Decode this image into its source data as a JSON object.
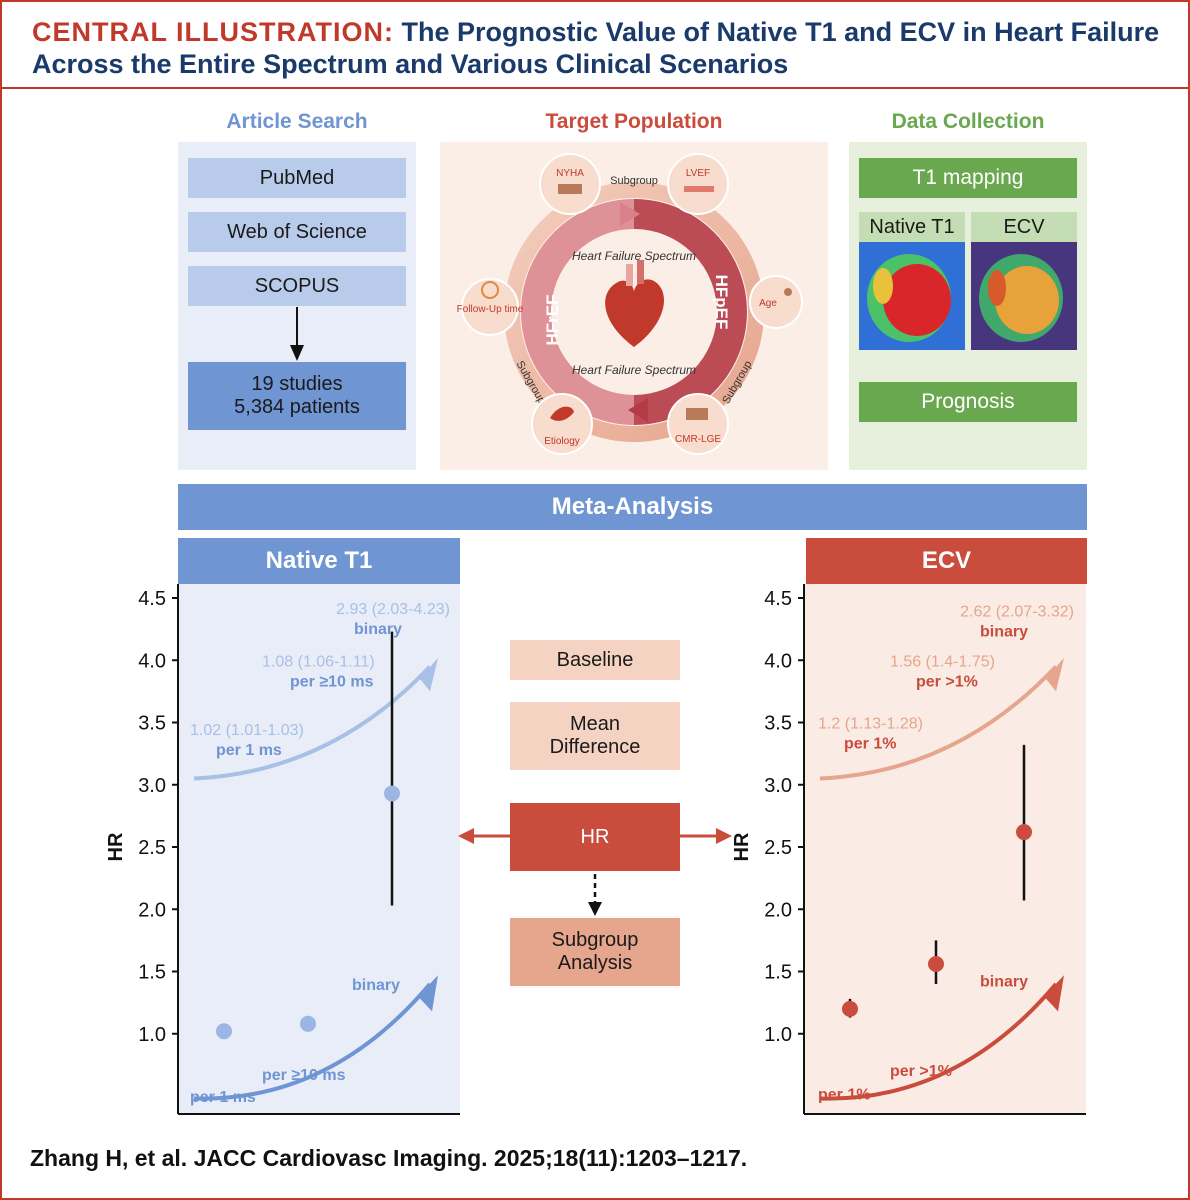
{
  "title": {
    "lead": "CENTRAL ILLUSTRATION:",
    "text": "The Prognostic Value of Native T1 and ECV in Heart Failure Across the Entire Spectrum and Various Clinical Scenarios"
  },
  "article_search": {
    "heading": "Article Search",
    "databases": [
      "PubMed",
      "Web of Science",
      "SCOPUS"
    ],
    "result_line1": "19 studies",
    "result_line2": "5,384 patients"
  },
  "target_population": {
    "heading": "Target Population",
    "subgroups": [
      "NYHA",
      "LVEF",
      "Age",
      "CMR-LGE",
      "Etiology",
      "Follow-Up time"
    ],
    "subgroup_label": "Subgroup",
    "hfref": "HFrEF",
    "hfpef": "HFpEF",
    "spectrum_label": "Heart Failure Spectrum"
  },
  "data_collection": {
    "heading": "Data Collection",
    "t1_mapping": "T1 mapping",
    "native_t1": "Native T1",
    "ecv": "ECV",
    "prognosis": "Prognosis"
  },
  "meta_analysis": {
    "label": "Meta-Analysis"
  },
  "center": {
    "baseline": "Baseline",
    "mean_diff_1": "Mean",
    "mean_diff_2": "Difference",
    "hr": "HR",
    "subgroup_1": "Subgroup",
    "subgroup_2": "Analysis"
  },
  "colors": {
    "blue": "#6f95d3",
    "red": "#c94c3c",
    "green": "#6aa84f",
    "navy": "#1a3a6b"
  },
  "chart_data": [
    {
      "type": "scatter",
      "title": "Native T1",
      "ylabel": "HR",
      "ylim": [
        0.5,
        4.5
      ],
      "yticks": [
        "1.0",
        "1.5",
        "2.0",
        "2.5",
        "3.0",
        "3.5",
        "4.0",
        "4.5"
      ],
      "points": [
        {
          "label": "per 1 ms",
          "hr": 1.02,
          "lo": 1.01,
          "hi": 1.03,
          "text": "1.02 (1.01-1.03)"
        },
        {
          "label": "per ≥10 ms",
          "hr": 1.08,
          "lo": 1.06,
          "hi": 1.11,
          "text": "1.08 (1.06-1.11)"
        },
        {
          "label": "binary",
          "hr": 2.93,
          "lo": 2.03,
          "hi": 4.23,
          "text": "2.93 (2.03-4.23)"
        }
      ]
    },
    {
      "type": "scatter",
      "title": "ECV",
      "ylabel": "HR",
      "ylim": [
        0.5,
        4.5
      ],
      "yticks": [
        "1.0",
        "1.5",
        "2.0",
        "2.5",
        "3.0",
        "3.5",
        "4.0",
        "4.5"
      ],
      "points": [
        {
          "label": "per 1%",
          "hr": 1.2,
          "lo": 1.13,
          "hi": 1.28,
          "text": "1.2 (1.13-1.28)"
        },
        {
          "label": "per >1%",
          "hr": 1.56,
          "lo": 1.4,
          "hi": 1.75,
          "text": "1.56 (1.4-1.75)"
        },
        {
          "label": "binary",
          "hr": 2.62,
          "lo": 2.07,
          "hi": 3.32,
          "text": "2.62 (2.07-3.32)"
        }
      ]
    }
  ],
  "citation": "Zhang H, et al. JACC Cardiovasc Imaging. 2025;18(11):1203–1217."
}
